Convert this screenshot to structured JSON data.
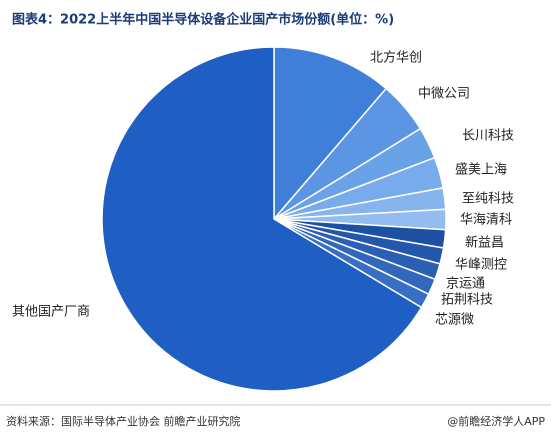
{
  "chart_data": {
    "type": "pie",
    "title": "图表4：2022上半年中国半导体设备企业国产市场份额(单位：%)",
    "source": "资料来源：国际半导体产业协会 前瞻产业研究院",
    "credit": "@前瞻经济学人APP",
    "categories": [
      "北方华创",
      "中微公司",
      "长川科技",
      "盛美上海",
      "至纯科技",
      "华海清科",
      "新益昌",
      "华峰测控",
      "京运通",
      "拓荆科技",
      "芯源微",
      "其他国产厂商"
    ],
    "values": [
      11.3,
      4.9,
      3.0,
      2.9,
      2.0,
      1.9,
      1.7,
      1.5,
      1.5,
      1.5,
      1.4,
      66.4
    ],
    "colors": [
      "#3f7fd9",
      "#5b95e3",
      "#6aa2e8",
      "#78abeb",
      "#86b5ee",
      "#93bdf0",
      "#1d4fa3",
      "#2357ad",
      "#2a5fb5",
      "#3167bd",
      "#386fc5",
      "#1f5ec2"
    ]
  }
}
